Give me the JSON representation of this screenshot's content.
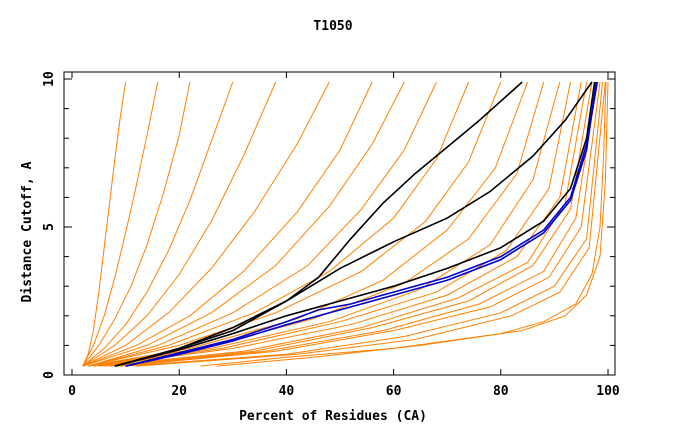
{
  "chart_data": {
    "type": "line",
    "title": "T1050",
    "xlabel": "Percent of Residues (CA)",
    "ylabel": "Distance Cutoff, A",
    "xlim": [
      0,
      100
    ],
    "ylim": [
      0,
      10
    ],
    "x_ticks": [
      0,
      20,
      40,
      60,
      80,
      100
    ],
    "y_ticks": [
      0,
      5,
      10
    ],
    "grid": false,
    "legend": "none",
    "colors": {
      "orange": "#ff8000",
      "black": "#000000",
      "blue": "#0000cc"
    },
    "series": [
      {
        "color": "#ff8000",
        "x": [
          2,
          3,
          4,
          5,
          6,
          7,
          8,
          9,
          10
        ],
        "y": [
          0.3,
          0.7,
          1.5,
          2.8,
          4.3,
          5.8,
          7.3,
          8.7,
          9.9
        ]
      },
      {
        "color": "#ff8000",
        "x": [
          2,
          4,
          6,
          8,
          10,
          12,
          14,
          16
        ],
        "y": [
          0.3,
          1.0,
          2.0,
          3.3,
          4.8,
          6.4,
          8.1,
          9.9
        ]
      },
      {
        "color": "#ff8000",
        "x": [
          2,
          5,
          8,
          11,
          14,
          17,
          20,
          22
        ],
        "y": [
          0.3,
          1.0,
          1.9,
          3.0,
          4.4,
          6.1,
          8.1,
          9.9
        ]
      },
      {
        "color": "#ff8000",
        "x": [
          2,
          6,
          10,
          14,
          18,
          22,
          26,
          30
        ],
        "y": [
          0.3,
          0.9,
          1.7,
          2.8,
          4.2,
          5.9,
          7.9,
          9.9
        ]
      },
      {
        "color": "#ff8000",
        "x": [
          2,
          8,
          14,
          20,
          26,
          32,
          38
        ],
        "y": [
          0.3,
          1.0,
          2.0,
          3.4,
          5.2,
          7.4,
          9.9
        ]
      },
      {
        "color": "#ff8000",
        "x": [
          2,
          10,
          18,
          26,
          34,
          42,
          48
        ],
        "y": [
          0.3,
          1.0,
          2.1,
          3.6,
          5.5,
          7.8,
          9.9
        ]
      },
      {
        "color": "#ff8000",
        "x": [
          2,
          12,
          22,
          32,
          42,
          50,
          56
        ],
        "y": [
          0.3,
          1.0,
          2.0,
          3.5,
          5.5,
          7.6,
          9.9
        ]
      },
      {
        "color": "#ff8000",
        "x": [
          2,
          14,
          26,
          38,
          48,
          56,
          62
        ],
        "y": [
          0.3,
          1.0,
          2.1,
          3.7,
          5.7,
          7.8,
          9.9
        ]
      },
      {
        "color": "#ff8000",
        "x": [
          3,
          16,
          30,
          44,
          54,
          62,
          68
        ],
        "y": [
          0.3,
          1.0,
          2.1,
          3.7,
          5.6,
          7.6,
          9.9
        ]
      },
      {
        "color": "#ff8000",
        "x": [
          3,
          18,
          34,
          48,
          60,
          68,
          74
        ],
        "y": [
          0.3,
          1.0,
          2.1,
          3.5,
          5.3,
          7.3,
          9.9
        ]
      },
      {
        "color": "#ff8000",
        "x": [
          3,
          20,
          38,
          54,
          66,
          74,
          80
        ],
        "y": [
          0.3,
          1.0,
          2.1,
          3.5,
          5.2,
          7.2,
          9.9
        ]
      },
      {
        "color": "#ff8000",
        "x": [
          3,
          22,
          42,
          58,
          70,
          79,
          85
        ],
        "y": [
          0.3,
          0.9,
          1.9,
          3.2,
          4.9,
          7.0,
          9.9
        ]
      },
      {
        "color": "#ff8000",
        "x": [
          3,
          24,
          45,
          62,
          74,
          83,
          88
        ],
        "y": [
          0.3,
          0.9,
          1.9,
          3.1,
          4.6,
          6.8,
          9.9
        ]
      },
      {
        "color": "#ff8000",
        "x": [
          4,
          26,
          48,
          65,
          78,
          86,
          91
        ],
        "y": [
          0.3,
          0.9,
          1.8,
          2.9,
          4.4,
          6.6,
          9.9
        ]
      },
      {
        "color": "#ff8000",
        "x": [
          4,
          28,
          50,
          68,
          81,
          89,
          93
        ],
        "y": [
          0.3,
          0.9,
          1.8,
          2.8,
          4.2,
          6.3,
          9.9
        ]
      },
      {
        "color": "#ff8000",
        "x": [
          5,
          30,
          52,
          70,
          83,
          91,
          95
        ],
        "y": [
          0.3,
          0.9,
          1.7,
          2.7,
          4.0,
          6.0,
          9.9
        ]
      },
      {
        "color": "#ff8000",
        "x": [
          6,
          32,
          54,
          72,
          85,
          92,
          96
        ],
        "y": [
          0.3,
          0.8,
          1.6,
          2.6,
          3.8,
          5.8,
          9.9
        ]
      },
      {
        "color": "#ff8000",
        "x": [
          7,
          34,
          56,
          74,
          86,
          93,
          97
        ],
        "y": [
          0.3,
          0.8,
          1.6,
          2.5,
          3.7,
          5.6,
          9.9
        ]
      },
      {
        "color": "#ff8000",
        "x": [
          8,
          36,
          58,
          76,
          88,
          94,
          98
        ],
        "y": [
          0.3,
          0.8,
          1.5,
          2.4,
          3.5,
          5.3,
          9.9
        ]
      },
      {
        "color": "#ff8000",
        "x": [
          9,
          38,
          60,
          78,
          89,
          95,
          98.5
        ],
        "y": [
          0.3,
          0.8,
          1.5,
          2.3,
          3.3,
          5.0,
          9.9
        ]
      },
      {
        "color": "#ff8000",
        "x": [
          10,
          40,
          62,
          80,
          90,
          96,
          99
        ],
        "y": [
          0.3,
          0.7,
          1.3,
          2.1,
          3.0,
          4.6,
          9.9
        ]
      },
      {
        "color": "#ff8000",
        "x": [
          12,
          42,
          64,
          82,
          91,
          96.5,
          99.5
        ],
        "y": [
          0.3,
          0.7,
          1.2,
          2.0,
          2.8,
          4.3,
          9.9
        ]
      },
      {
        "color": "#ff8000",
        "x": [
          24,
          40,
          60,
          80,
          88,
          94,
          97,
          98.5,
          99.2,
          99.6
        ],
        "y": [
          0.3,
          0.6,
          0.9,
          1.4,
          1.8,
          2.4,
          3.4,
          5.0,
          7.5,
          9.9
        ]
      },
      {
        "color": "#ff8000",
        "x": [
          27,
          45,
          65,
          84,
          92,
          96,
          98.5,
          99.5,
          100
        ],
        "y": [
          0.3,
          0.6,
          1.0,
          1.5,
          2.0,
          2.7,
          4.0,
          6.5,
          9.9
        ]
      },
      {
        "color": "#000000",
        "x": [
          8,
          20,
          30,
          40,
          46,
          52,
          58,
          64,
          70,
          76,
          84
        ],
        "y": [
          0.3,
          0.9,
          1.6,
          2.5,
          3.3,
          4.6,
          5.8,
          6.8,
          7.7,
          8.6,
          9.9
        ]
      },
      {
        "color": "#000000",
        "x": [
          8,
          20,
          30,
          40,
          50,
          60,
          70,
          78,
          86,
          92,
          97
        ],
        "y": [
          0.3,
          0.9,
          1.5,
          2.5,
          3.6,
          4.5,
          5.3,
          6.2,
          7.4,
          8.6,
          9.9
        ]
      },
      {
        "color": "#000000",
        "x": [
          8,
          20,
          30,
          40,
          50,
          60,
          70,
          80,
          88,
          93,
          96,
          97.5
        ],
        "y": [
          0.3,
          0.85,
          1.4,
          2.0,
          2.5,
          3.0,
          3.6,
          4.3,
          5.2,
          6.3,
          8.0,
          9.9
        ]
      },
      {
        "color": "#0000cc",
        "x": [
          10,
          20,
          30,
          40,
          46,
          52,
          60,
          70,
          80,
          88,
          93,
          96,
          98
        ],
        "y": [
          0.3,
          0.75,
          1.2,
          1.8,
          2.2,
          2.4,
          2.8,
          3.3,
          4.0,
          4.9,
          6.0,
          7.8,
          9.9
        ]
      },
      {
        "color": "#0000cc",
        "x": [
          10,
          20,
          30,
          40,
          50,
          60,
          70,
          80,
          88,
          93,
          96,
          97.8
        ],
        "y": [
          0.3,
          0.7,
          1.15,
          1.7,
          2.2,
          2.7,
          3.2,
          3.9,
          4.8,
          5.9,
          7.6,
          9.9
        ]
      }
    ]
  }
}
